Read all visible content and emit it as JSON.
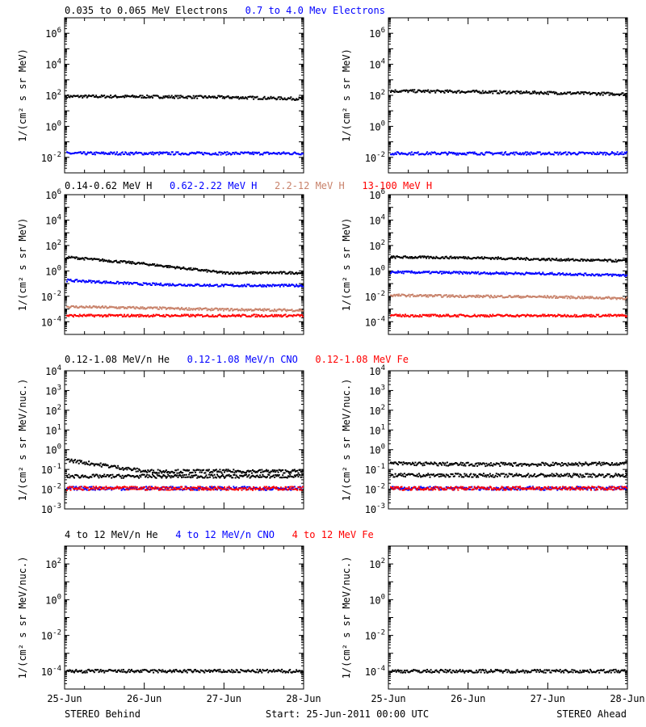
{
  "footer": {
    "left": "STEREO Behind",
    "center": "Start: 25-Jun-2011 00:00 UTC",
    "right": "STEREO Ahead"
  },
  "x_ticks": [
    "25-Jun",
    "26-Jun",
    "27-Jun",
    "28-Jun"
  ],
  "chart_data": [
    {
      "type": "scatter",
      "panel": "electrons",
      "legend": [
        {
          "text": "0.035 to 0.065 MeV Electrons",
          "color": "#000000"
        },
        {
          "text": "0.7 to 4.0 Mev Electrons",
          "color": "#0000ff"
        }
      ],
      "ylabel": "1/(cm² s sr MeV)",
      "y_scale": "log",
      "ylim_exp": [
        -3,
        7
      ],
      "ytick_exps": [
        -2,
        0,
        2,
        4,
        6
      ],
      "x": [
        "25-Jun",
        "26-Jun",
        "27-Jun",
        "28-Jun"
      ],
      "behind": [
        {
          "color": "#000000",
          "values": [
            85,
            82,
            75,
            60
          ]
        },
        {
          "color": "#0000ff",
          "values": [
            0.018,
            0.018,
            0.018,
            0.018
          ]
        }
      ],
      "ahead": [
        {
          "color": "#000000",
          "values": [
            190,
            170,
            145,
            120
          ]
        },
        {
          "color": "#0000ff",
          "values": [
            0.018,
            0.018,
            0.018,
            0.018
          ]
        }
      ]
    },
    {
      "type": "scatter",
      "panel": "protons",
      "legend": [
        {
          "text": "0.14-0.62 MeV H",
          "color": "#000000"
        },
        {
          "text": "0.62-2.22 MeV H",
          "color": "#0000ff"
        },
        {
          "text": "2.2-12 MeV H",
          "color": "#c8826a"
        },
        {
          "text": "13-100 MeV H",
          "color": "#ff0000"
        }
      ],
      "ylabel": "1/(cm² s sr MeV)",
      "y_scale": "log",
      "ylim_exp": [
        -5,
        6
      ],
      "ytick_exps": [
        -4,
        -2,
        0,
        2,
        4,
        6
      ],
      "x": [
        "25-Jun",
        "26-Jun",
        "27-Jun",
        "28-Jun"
      ],
      "behind": [
        {
          "color": "#000000",
          "values": [
            12,
            3.5,
            0.7,
            0.7
          ]
        },
        {
          "color": "#0000ff",
          "values": [
            0.18,
            0.09,
            0.07,
            0.07
          ]
        },
        {
          "color": "#c8826a",
          "values": [
            0.0015,
            0.0012,
            0.0009,
            0.0008
          ]
        },
        {
          "color": "#ff0000",
          "values": [
            0.0003,
            0.0003,
            0.0003,
            0.0003
          ]
        }
      ],
      "ahead": [
        {
          "color": "#000000",
          "values": [
            12,
            11,
            8,
            6
          ]
        },
        {
          "color": "#0000ff",
          "values": [
            0.8,
            0.7,
            0.6,
            0.45
          ]
        },
        {
          "color": "#c8826a",
          "values": [
            0.012,
            0.01,
            0.009,
            0.007
          ]
        },
        {
          "color": "#ff0000",
          "values": [
            0.0003,
            0.0003,
            0.0003,
            0.0003
          ]
        }
      ]
    },
    {
      "type": "scatter",
      "panel": "heavy_ions_low",
      "legend": [
        {
          "text": "0.12-1.08 MeV/n He",
          "color": "#000000"
        },
        {
          "text": "0.12-1.08 MeV/n CNO",
          "color": "#0000ff"
        },
        {
          "text": "0.12-1.08 MeV Fe",
          "color": "#ff0000"
        }
      ],
      "ylabel": "1/(cm² s sr MeV/nuc.)",
      "y_scale": "log",
      "ylim_exp": [
        -3,
        4
      ],
      "ytick_exps": [
        -3,
        -2,
        -1,
        0,
        1,
        2,
        3,
        4
      ],
      "x": [
        "25-Jun",
        "26-Jun",
        "27-Jun",
        "28-Jun"
      ],
      "behind": [
        {
          "color": "#000000",
          "values": [
            0.3,
            0.08,
            0.08,
            0.08
          ]
        },
        {
          "color": "#000000",
          "values": [
            0.045,
            0.045,
            0.045,
            0.045
          ]
        },
        {
          "color": "#0000ff",
          "values": [
            0.011,
            0.011,
            0.011,
            0.011
          ]
        },
        {
          "color": "#ff0000",
          "values": [
            0.011,
            0.011,
            0.011,
            0.011
          ]
        }
      ],
      "ahead": [
        {
          "color": "#000000",
          "values": [
            0.2,
            0.18,
            0.18,
            0.2
          ]
        },
        {
          "color": "#000000",
          "values": [
            0.05,
            0.05,
            0.05,
            0.05
          ]
        },
        {
          "color": "#0000ff",
          "values": [
            0.011,
            0.011,
            0.011,
            0.011
          ]
        },
        {
          "color": "#ff0000",
          "values": [
            0.011,
            0.011,
            0.011,
            0.011
          ]
        }
      ]
    },
    {
      "type": "scatter",
      "panel": "heavy_ions_high",
      "legend": [
        {
          "text": "4 to 12 MeV/n He",
          "color": "#000000"
        },
        {
          "text": "4 to 12 MeV/n CNO",
          "color": "#0000ff"
        },
        {
          "text": "4 to 12 MeV Fe",
          "color": "#ff0000"
        }
      ],
      "ylabel": "1/(cm² s sr MeV/nuc.)",
      "y_scale": "log",
      "ylim_exp": [
        -5,
        3
      ],
      "ytick_exps": [
        -4,
        -2,
        0,
        2
      ],
      "x": [
        "25-Jun",
        "26-Jun",
        "27-Jun",
        "28-Jun"
      ],
      "behind": [
        {
          "color": "#000000",
          "values": [
            0.0001,
            0.0001,
            0.0001,
            0.0001
          ]
        }
      ],
      "ahead": [
        {
          "color": "#000000",
          "values": [
            0.0001,
            0.0001,
            0.0001,
            0.0001
          ]
        }
      ]
    }
  ]
}
